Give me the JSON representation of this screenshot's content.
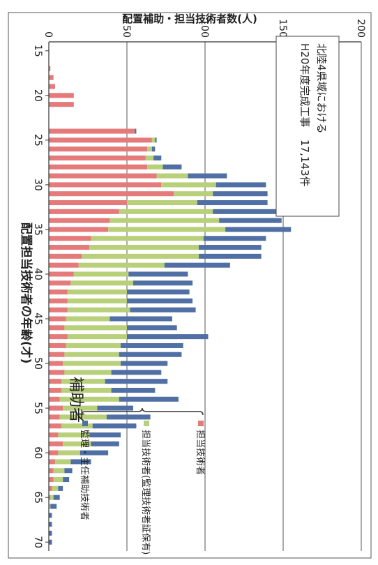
{
  "chart_data": {
    "type": "bar",
    "stacked": true,
    "orientation": "vertical-rotated-90",
    "xlabel": "配置担当技術者の年齢(才)",
    "ylabel": "配置補助・担当技術者数(人)",
    "xlim": [
      14,
      71
    ],
    "ylim": [
      0,
      200
    ],
    "y_ticks": [
      0,
      50,
      100,
      150,
      200
    ],
    "x_ticks": [
      15,
      20,
      25,
      30,
      35,
      40,
      45,
      50,
      55,
      60,
      65,
      70
    ],
    "grid": true,
    "categories": [
      15,
      16,
      17,
      18,
      19,
      20,
      21,
      22,
      23,
      24,
      25,
      26,
      27,
      28,
      29,
      30,
      31,
      32,
      33,
      34,
      35,
      36,
      37,
      38,
      39,
      40,
      41,
      42,
      43,
      44,
      45,
      46,
      47,
      48,
      49,
      50,
      51,
      52,
      53,
      54,
      55,
      56,
      57,
      58,
      59,
      60,
      61,
      62,
      63,
      64,
      65,
      66,
      67,
      68,
      69,
      70
    ],
    "series": [
      {
        "name": "担当技術者",
        "color": "#e47a7a",
        "values": [
          0,
          0,
          1,
          3,
          4,
          16,
          16,
          0,
          0,
          55,
          66,
          63,
          62,
          63,
          69,
          72,
          80,
          50,
          45,
          39,
          38,
          27,
          26,
          21,
          19,
          16,
          14,
          12,
          12,
          12,
          11,
          10,
          12,
          11,
          10,
          9,
          10,
          8,
          8,
          7,
          9,
          7,
          8,
          6,
          9,
          6,
          4,
          3,
          3,
          2,
          1,
          0,
          0,
          0,
          0,
          0
        ]
      },
      {
        "name": "担当技術者(監理技術者証保有)",
        "color": "#b8d07a",
        "values": [
          0,
          0,
          0,
          0,
          0,
          0,
          0,
          0,
          0,
          0,
          2,
          3,
          5,
          10,
          20,
          35,
          25,
          45,
          60,
          70,
          75,
          72,
          70,
          75,
          55,
          35,
          40,
          38,
          38,
          40,
          28,
          40,
          38,
          35,
          35,
          37,
          30,
          28,
          32,
          38,
          22,
          30,
          20,
          20,
          18,
          14,
          10,
          7,
          6,
          4,
          2,
          1,
          0,
          0,
          0,
          0
        ]
      },
      {
        "name": "監理・主任補助技術者",
        "color": "#4f6fa5",
        "values": [
          0,
          0,
          0,
          0,
          0,
          0,
          0,
          0,
          0,
          1,
          1,
          2,
          5,
          12,
          25,
          32,
          35,
          45,
          55,
          40,
          42,
          40,
          40,
          40,
          42,
          38,
          38,
          40,
          42,
          42,
          40,
          32,
          52,
          40,
          40,
          30,
          32,
          40,
          28,
          38,
          23,
          28,
          28,
          20,
          18,
          18,
          13,
          5,
          4,
          3,
          4,
          4,
          2,
          2,
          2,
          2
        ]
      }
    ]
  },
  "annotation_box": {
    "line1": "北陸4県域における",
    "line2": "H20年度完成工事",
    "count": "17,143件"
  },
  "legend": {
    "group_label": "補助者",
    "items": [
      "監理・主任補助技術者",
      "担当技術者(監理技術者証保有)",
      "担当技術者"
    ]
  }
}
